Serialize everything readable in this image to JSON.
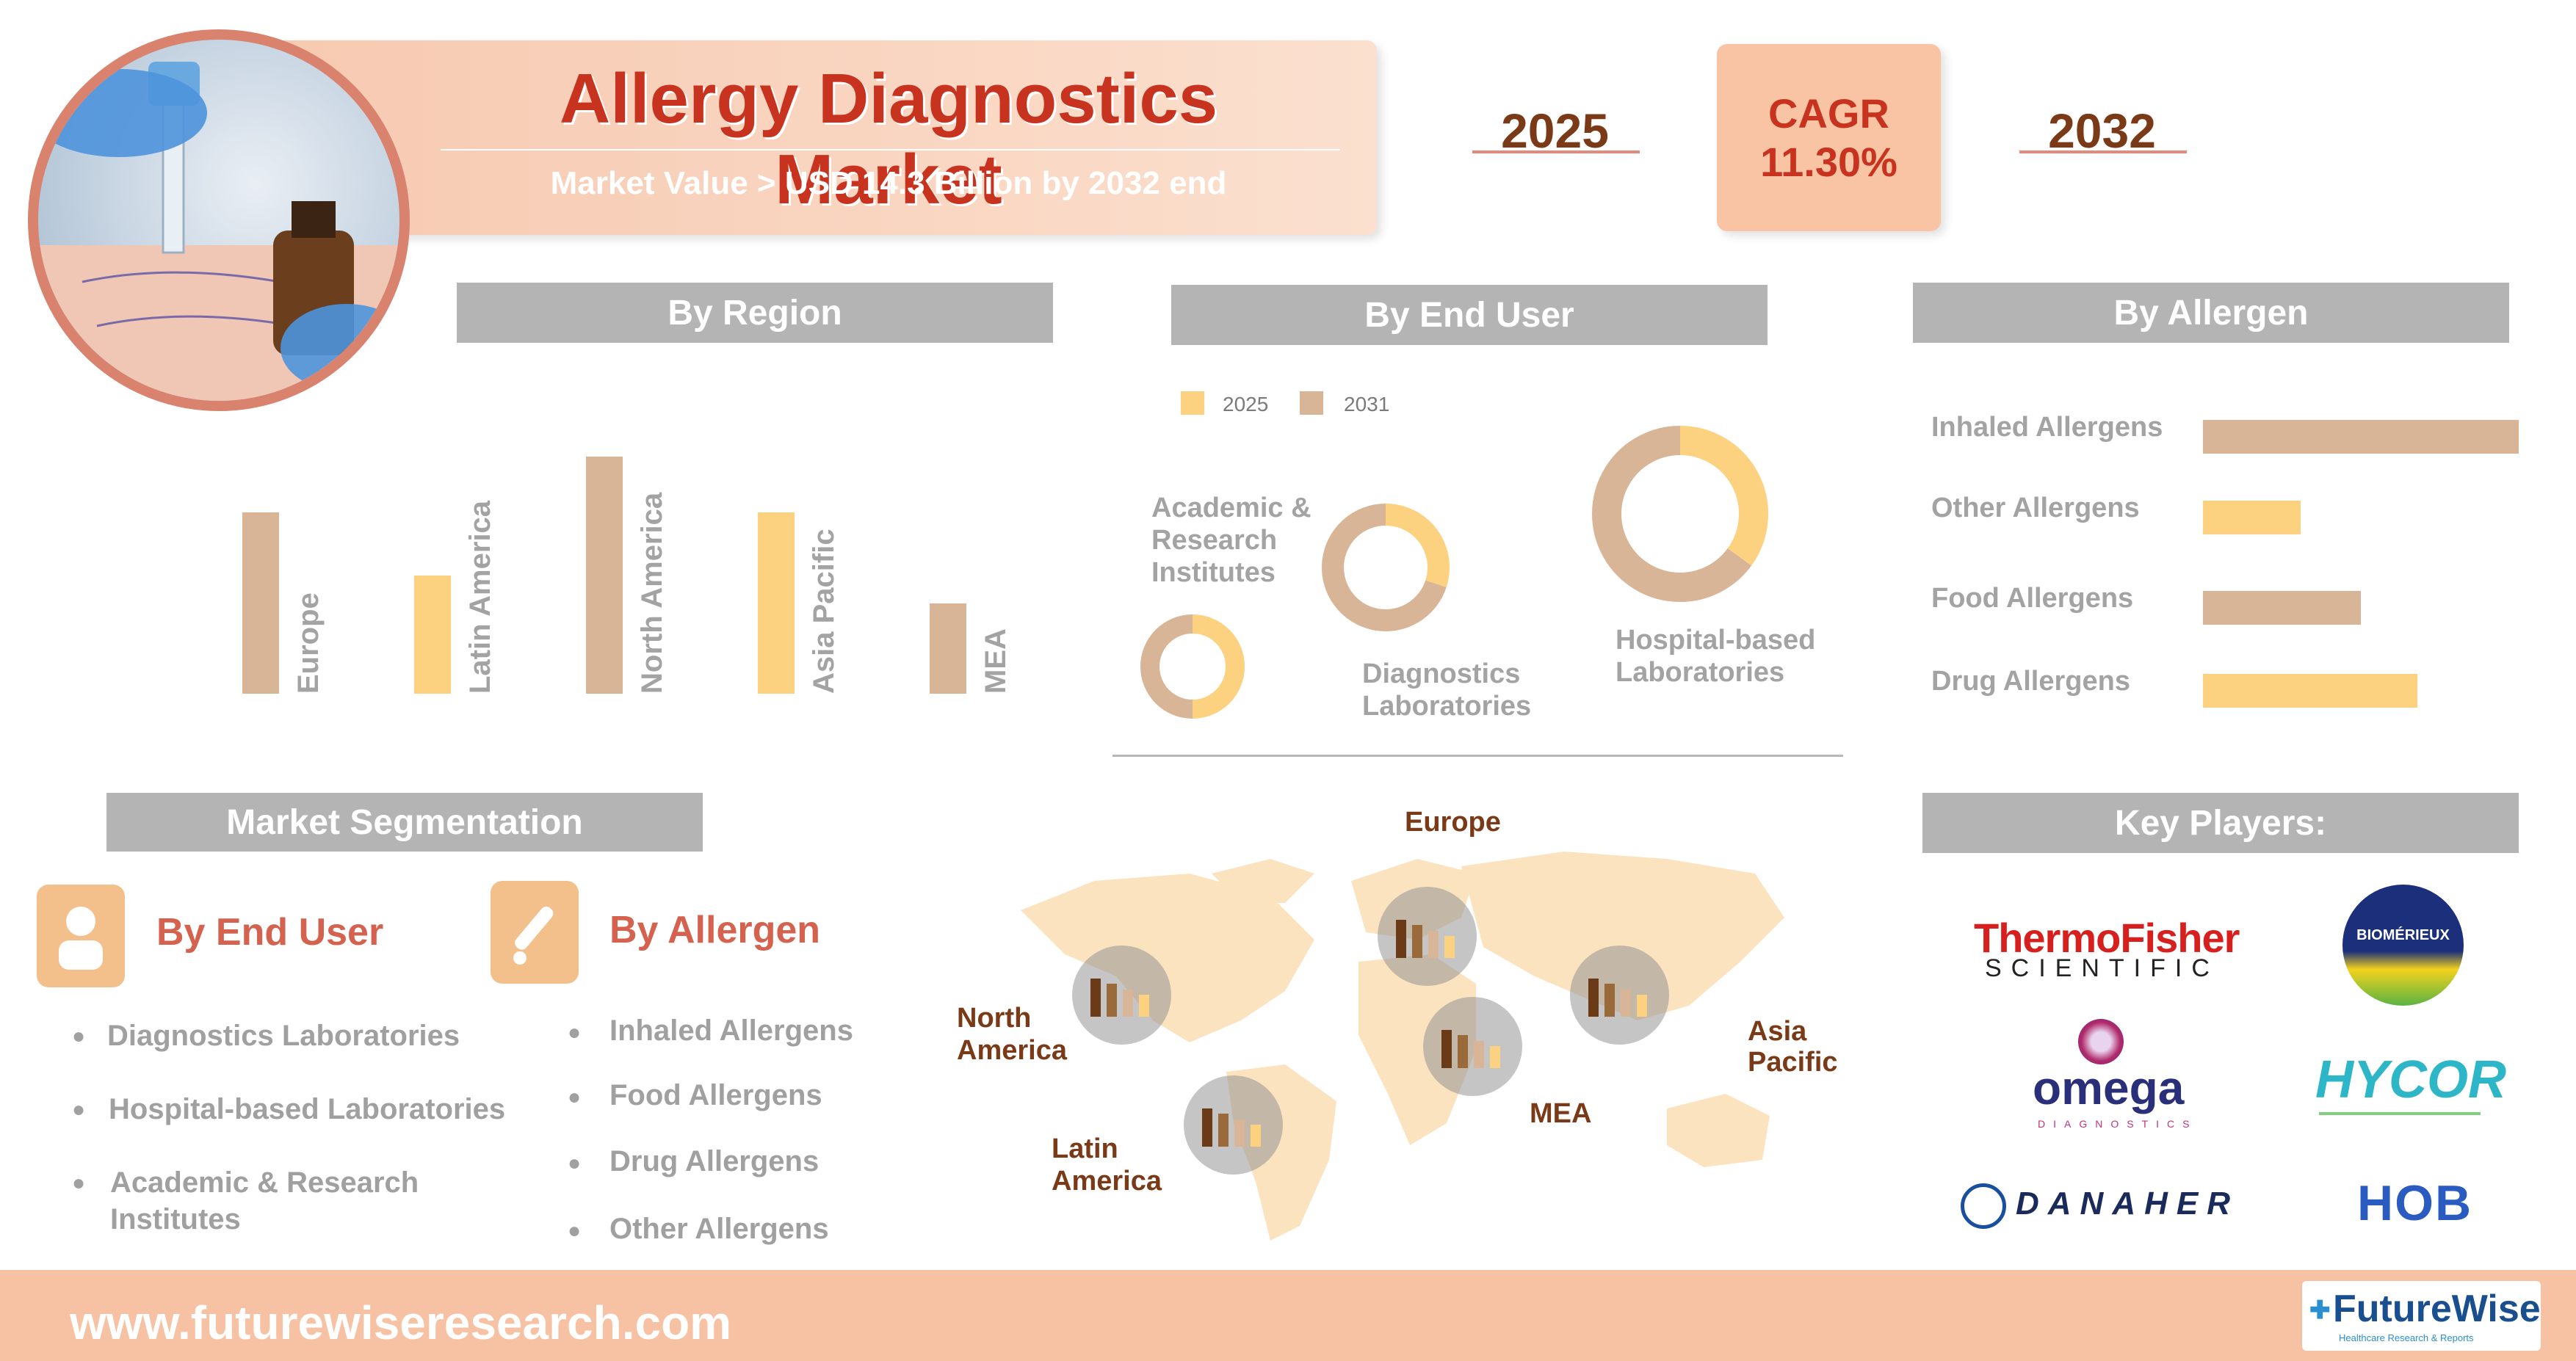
{
  "header": {
    "title": "Allergy Diagnostics Market",
    "subtitle": "Market Value > USD 14.3 Billion by 2032 end"
  },
  "timeline": {
    "start_year": "2025",
    "cagr_label": "CAGR",
    "cagr_value": "11.30%",
    "end_year": "2032"
  },
  "sections": {
    "by_region": "By Region",
    "by_end_user": "By End User",
    "by_allergen": "By Allergen",
    "market_segmentation": "Market Segmentation",
    "key_players": "Key Players:"
  },
  "colors": {
    "color_2025": "#fcd280",
    "color_2031": "#d8b596",
    "accent_red": "#c8331f",
    "brown": "#7b3a17"
  },
  "chart_data": [
    {
      "type": "bar",
      "title": "By Region",
      "categories": [
        "Europe",
        "Latin America",
        "North America",
        "Asia Pacific",
        "MEA"
      ],
      "values": [
        2.6,
        1.7,
        3.4,
        2.6,
        1.3
      ],
      "bar_colors": [
        "#d8b596",
        "#fcd280",
        "#d8b596",
        "#fcd280",
        "#d8b596"
      ],
      "xlabel": "",
      "ylabel": ""
    },
    {
      "type": "pie",
      "title": "By End User",
      "legend": [
        "2025",
        "2031"
      ],
      "legend_placement": "top-left",
      "categories": [
        "Academic & Research Institutes",
        "Diagnostics Laboratories",
        "Hospital-based Laboratories"
      ],
      "series": [
        {
          "name": "2025",
          "values": [
            50,
            30,
            35
          ]
        },
        {
          "name": "2031",
          "values": [
            50,
            70,
            65
          ]
        }
      ]
    },
    {
      "type": "bar",
      "orientation": "horizontal",
      "title": "By Allergen",
      "categories": [
        "Inhaled Allergens",
        "Other Allergens",
        "Food Allergens",
        "Drug Allergens"
      ],
      "values": [
        100,
        31,
        50,
        68
      ],
      "bar_colors": [
        "#d8b596",
        "#fcd280",
        "#d8b596",
        "#fcd280"
      ]
    }
  ],
  "segmentation": {
    "end_user": {
      "title": "By End User",
      "items": [
        "Diagnostics Laboratories",
        "Hospital-based Laboratories",
        "Academic & Research",
        "Institutes"
      ]
    },
    "allergen": {
      "title": "By Allergen",
      "items": [
        "Inhaled Allergens",
        "Food Allergens",
        "Drug Allergens",
        "Other Allergens"
      ]
    }
  },
  "map": {
    "regions": [
      "Europe",
      "North",
      "America",
      "Asia",
      "Pacific",
      "MEA",
      "Latin",
      "America"
    ]
  },
  "key_players": {
    "thermo1": "ThermoFisher",
    "thermo2": "SCIENTIFIC",
    "biomerieux": "BIOMÉRIEUX",
    "omega": "omega",
    "omega_sub": "DIAGNOSTICS",
    "hycor": "HYCOR",
    "danaher": "DANAHER",
    "hob": "HOB"
  },
  "footer": {
    "url": "www.futurewiseresearch.com",
    "brand": "FutureWise",
    "brand_sub": "Healthcare Research & Reports"
  }
}
